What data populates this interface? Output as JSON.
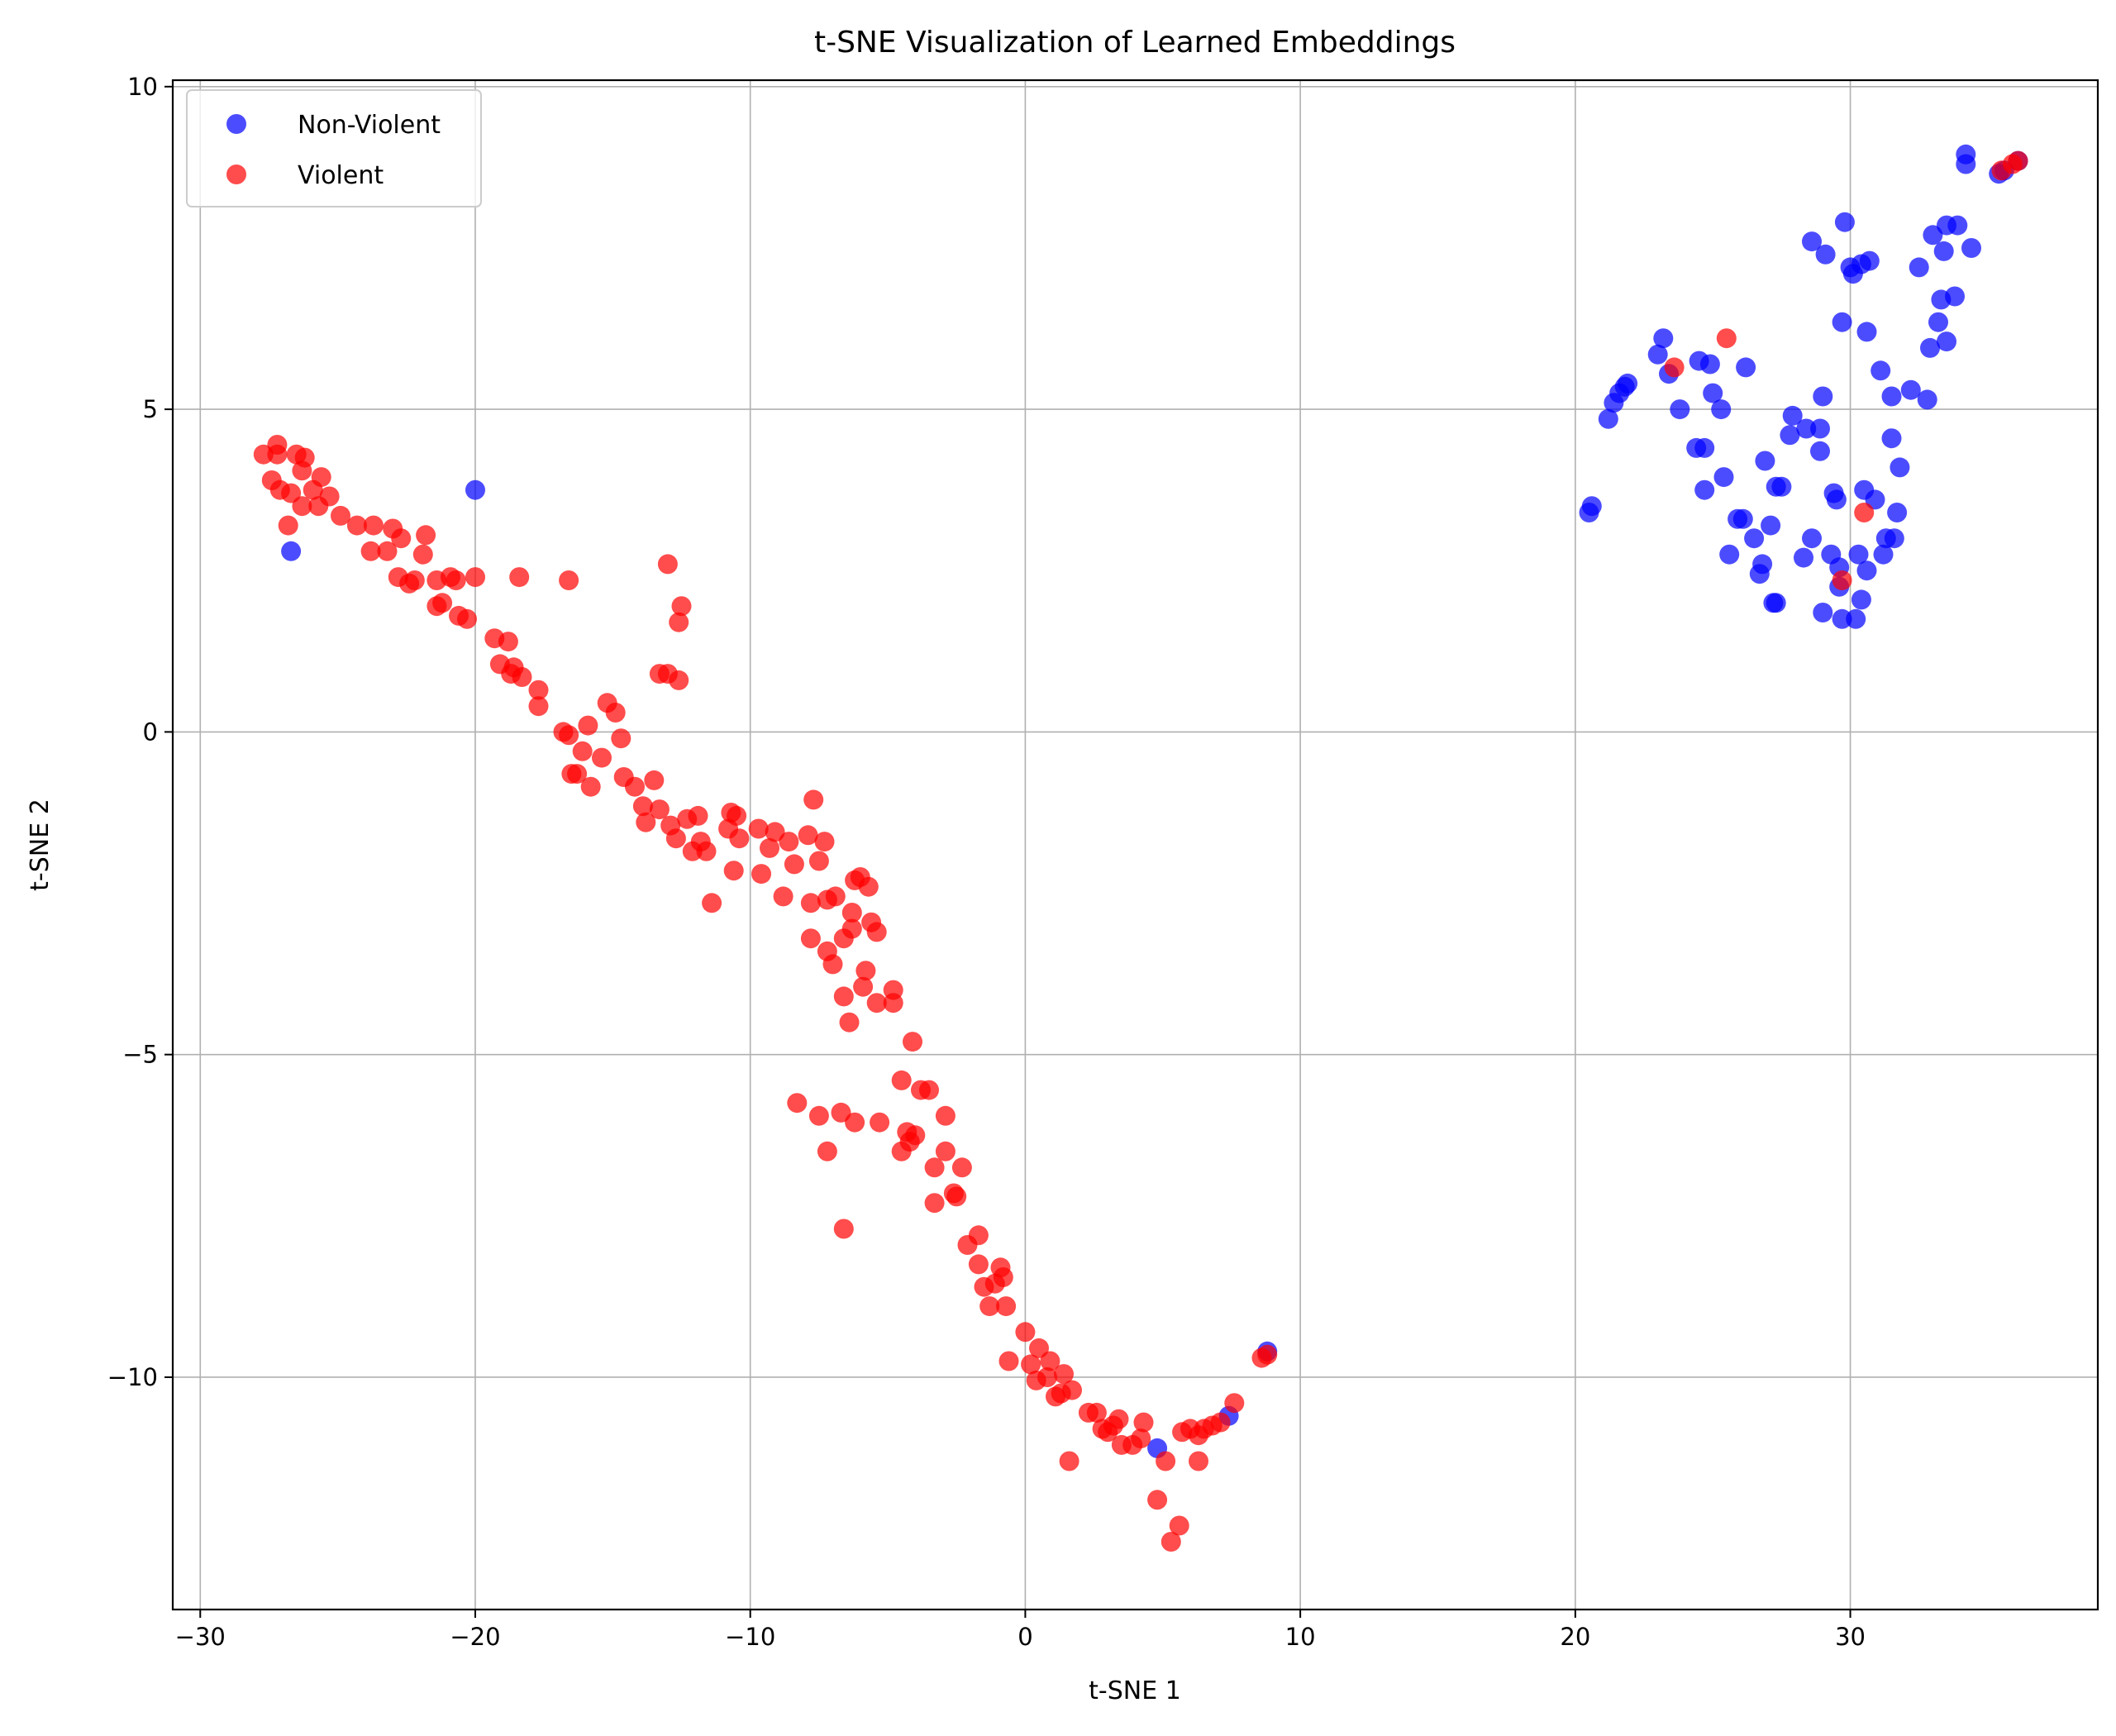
{
  "chart_data": {
    "type": "scatter",
    "title": "t-SNE Visualization of Learned Embeddings",
    "xlabel": "t-SNE 1",
    "ylabel": "t-SNE 2",
    "xlim": [
      -31,
      39
    ],
    "ylim": [
      -13.6,
      10.1
    ],
    "xticks": [
      -30,
      -20,
      -10,
      0,
      10,
      20,
      30
    ],
    "yticks": [
      -10,
      -5,
      0,
      5,
      10
    ],
    "xtick_labels": [
      "−30",
      "−20",
      "−10",
      "0",
      "10",
      "20",
      "30"
    ],
    "ytick_labels": [
      "−10",
      "−5",
      "0",
      "5",
      "10"
    ],
    "grid": true,
    "legend_position": "top-left",
    "series": [
      {
        "name": "Non-Violent",
        "color": "#0000ff",
        "points": [
          [
            -20,
            3.75
          ],
          [
            -26.7,
            2.8
          ],
          [
            4.8,
            -11.1
          ],
          [
            7.4,
            -10.6
          ],
          [
            8.8,
            -9.6
          ],
          [
            20.5,
            3.4
          ],
          [
            20.6,
            3.5
          ],
          [
            21.2,
            4.85
          ],
          [
            21.4,
            5.1
          ],
          [
            21.6,
            5.25
          ],
          [
            21.8,
            5.35
          ],
          [
            21.9,
            5.4
          ],
          [
            23.0,
            5.85
          ],
          [
            23.2,
            6.1
          ],
          [
            23.4,
            5.55
          ],
          [
            23.8,
            5.0
          ],
          [
            24.4,
            4.4
          ],
          [
            24.5,
            5.75
          ],
          [
            24.7,
            4.4
          ],
          [
            24.7,
            3.75
          ],
          [
            24.9,
            5.7
          ],
          [
            25.0,
            5.25
          ],
          [
            25.3,
            5.0
          ],
          [
            25.4,
            3.95
          ],
          [
            25.6,
            2.75
          ],
          [
            25.9,
            3.3
          ],
          [
            26.1,
            3.3
          ],
          [
            26.2,
            5.65
          ],
          [
            26.5,
            3.0
          ],
          [
            26.7,
            2.45
          ],
          [
            26.8,
            2.6
          ],
          [
            26.9,
            4.2
          ],
          [
            27.1,
            3.2
          ],
          [
            27.2,
            2.0
          ],
          [
            27.3,
            2.0
          ],
          [
            27.3,
            3.8
          ],
          [
            27.5,
            3.8
          ],
          [
            27.8,
            4.6
          ],
          [
            27.9,
            4.9
          ],
          [
            28.3,
            2.7
          ],
          [
            28.4,
            4.7
          ],
          [
            28.6,
            7.6
          ],
          [
            28.6,
            3.0
          ],
          [
            28.9,
            4.7
          ],
          [
            28.9,
            4.35
          ],
          [
            29.0,
            5.2
          ],
          [
            29.0,
            1.85
          ],
          [
            29.1,
            7.4
          ],
          [
            29.3,
            2.75
          ],
          [
            29.4,
            3.7
          ],
          [
            29.5,
            3.6
          ],
          [
            29.6,
            2.55
          ],
          [
            29.6,
            2.25
          ],
          [
            29.7,
            6.35
          ],
          [
            29.7,
            1.75
          ],
          [
            29.8,
            7.9
          ],
          [
            30.0,
            7.2
          ],
          [
            30.1,
            7.1
          ],
          [
            30.2,
            1.75
          ],
          [
            30.3,
            2.75
          ],
          [
            30.4,
            2.05
          ],
          [
            30.4,
            7.25
          ],
          [
            30.5,
            3.75
          ],
          [
            30.6,
            6.2
          ],
          [
            30.6,
            2.5
          ],
          [
            30.7,
            7.3
          ],
          [
            30.9,
            3.6
          ],
          [
            31.1,
            5.6
          ],
          [
            31.2,
            2.75
          ],
          [
            31.3,
            3.0
          ],
          [
            31.5,
            4.55
          ],
          [
            31.5,
            5.2
          ],
          [
            31.6,
            3.0
          ],
          [
            31.7,
            3.4
          ],
          [
            31.8,
            4.1
          ],
          [
            32.2,
            5.3
          ],
          [
            32.5,
            7.2
          ],
          [
            32.8,
            5.15
          ],
          [
            32.9,
            5.95
          ],
          [
            33.0,
            7.7
          ],
          [
            33.2,
            6.35
          ],
          [
            33.3,
            6.7
          ],
          [
            33.4,
            7.45
          ],
          [
            33.5,
            7.85
          ],
          [
            33.5,
            6.05
          ],
          [
            33.8,
            6.75
          ],
          [
            33.9,
            7.85
          ],
          [
            34.2,
            8.8
          ],
          [
            34.2,
            8.95
          ],
          [
            34.4,
            7.5
          ],
          [
            35.4,
            8.65
          ],
          [
            35.6,
            8.7
          ],
          [
            36.1,
            8.85
          ]
        ]
      },
      {
        "name": "Violent",
        "color": "#ff0000",
        "points": [
          [
            -27.7,
            4.3
          ],
          [
            -27.4,
            3.9
          ],
          [
            -27.2,
            4.45
          ],
          [
            -27.2,
            4.3
          ],
          [
            -27.1,
            3.75
          ],
          [
            -26.8,
            3.2
          ],
          [
            -26.7,
            3.7
          ],
          [
            -26.5,
            4.3
          ],
          [
            -26.3,
            3.5
          ],
          [
            -26.3,
            4.05
          ],
          [
            -26.2,
            4.25
          ],
          [
            -25.9,
            3.75
          ],
          [
            -25.7,
            3.5
          ],
          [
            -25.6,
            3.95
          ],
          [
            -25.3,
            3.65
          ],
          [
            -24.9,
            3.35
          ],
          [
            -24.3,
            3.2
          ],
          [
            -23.8,
            2.8
          ],
          [
            -23.7,
            3.2
          ],
          [
            -23.2,
            2.8
          ],
          [
            -23.0,
            3.15
          ],
          [
            -22.8,
            2.4
          ],
          [
            -22.7,
            3.0
          ],
          [
            -22.4,
            2.3
          ],
          [
            -22.2,
            2.35
          ],
          [
            -21.9,
            2.75
          ],
          [
            -21.8,
            3.05
          ],
          [
            -21.4,
            1.95
          ],
          [
            -21.4,
            2.35
          ],
          [
            -21.2,
            2.0
          ],
          [
            -20.9,
            2.4
          ],
          [
            -20.7,
            2.35
          ],
          [
            -20.6,
            1.8
          ],
          [
            -20.3,
            1.75
          ],
          [
            -20.0,
            2.4
          ],
          [
            -19.3,
            1.45
          ],
          [
            -19.1,
            1.05
          ],
          [
            -18.8,
            1.4
          ],
          [
            -18.7,
            0.9
          ],
          [
            -18.6,
            1.0
          ],
          [
            -18.4,
            2.4
          ],
          [
            -18.3,
            0.85
          ],
          [
            -17.7,
            0.65
          ],
          [
            -17.7,
            0.4
          ],
          [
            -16.6,
            2.35
          ],
          [
            -16.8,
            0.0
          ],
          [
            -16.6,
            -0.05
          ],
          [
            -16.5,
            -0.65
          ],
          [
            -16.3,
            -0.65
          ],
          [
            -16.1,
            -0.3
          ],
          [
            -15.9,
            0.1
          ],
          [
            -15.8,
            -0.85
          ],
          [
            -15.4,
            -0.4
          ],
          [
            -15.2,
            0.45
          ],
          [
            -14.9,
            0.3
          ],
          [
            -14.7,
            -0.1
          ],
          [
            -14.6,
            -0.7
          ],
          [
            -14.2,
            -0.85
          ],
          [
            -13.9,
            -1.15
          ],
          [
            -13.8,
            -1.4
          ],
          [
            -13.5,
            -0.75
          ],
          [
            -13.3,
            -1.2
          ],
          [
            -13.3,
            0.9
          ],
          [
            -13.0,
            0.9
          ],
          [
            -13.0,
            2.6
          ],
          [
            -12.9,
            -1.45
          ],
          [
            -12.7,
            -1.65
          ],
          [
            -12.6,
            0.8
          ],
          [
            -12.6,
            1.7
          ],
          [
            -12.5,
            1.95
          ],
          [
            -12.3,
            -1.35
          ],
          [
            -12.1,
            -1.85
          ],
          [
            -11.9,
            -1.3
          ],
          [
            -11.8,
            -1.7
          ],
          [
            -11.6,
            -1.85
          ],
          [
            -11.4,
            -2.65
          ],
          [
            -10.8,
            -1.5
          ],
          [
            -10.7,
            -1.25
          ],
          [
            -10.6,
            -2.15
          ],
          [
            -10.5,
            -1.3
          ],
          [
            -10.4,
            -1.65
          ],
          [
            -9.7,
            -1.5
          ],
          [
            -9.6,
            -2.2
          ],
          [
            -9.3,
            -1.8
          ],
          [
            -9.1,
            -1.55
          ],
          [
            -8.8,
            -2.55
          ],
          [
            -8.6,
            -1.7
          ],
          [
            -8.4,
            -2.05
          ],
          [
            -8.3,
            -5.75
          ],
          [
            -7.9,
            -1.6
          ],
          [
            -7.8,
            -2.65
          ],
          [
            -7.8,
            -3.2
          ],
          [
            -7.7,
            -1.05
          ],
          [
            -7.5,
            -2.0
          ],
          [
            -7.5,
            -5.95
          ],
          [
            -7.3,
            -1.7
          ],
          [
            -7.2,
            -2.6
          ],
          [
            -7.2,
            -3.4
          ],
          [
            -7.2,
            -6.5
          ],
          [
            -7.0,
            -3.6
          ],
          [
            -6.9,
            -2.55
          ],
          [
            -6.7,
            -5.9
          ],
          [
            -6.6,
            -3.2
          ],
          [
            -6.6,
            -4.1
          ],
          [
            -6.6,
            -7.7
          ],
          [
            -6.4,
            -4.5
          ],
          [
            -6.3,
            -3.05
          ],
          [
            -6.3,
            -2.8
          ],
          [
            -6.2,
            -6.05
          ],
          [
            -6.2,
            -2.3
          ],
          [
            -6.0,
            -2.25
          ],
          [
            -5.9,
            -3.95
          ],
          [
            -5.8,
            -3.7
          ],
          [
            -5.7,
            -2.4
          ],
          [
            -5.6,
            -2.95
          ],
          [
            -5.4,
            -3.1
          ],
          [
            -5.4,
            -4.2
          ],
          [
            -5.3,
            -6.05
          ],
          [
            -4.8,
            -4.0
          ],
          [
            -4.8,
            -4.2
          ],
          [
            -4.5,
            -5.4
          ],
          [
            -4.5,
            -6.5
          ],
          [
            -4.3,
            -6.2
          ],
          [
            -4.2,
            -6.35
          ],
          [
            -4.1,
            -4.8
          ],
          [
            -4.0,
            -6.25
          ],
          [
            -3.8,
            -5.55
          ],
          [
            -3.5,
            -5.55
          ],
          [
            -3.3,
            -6.75
          ],
          [
            -3.3,
            -7.3
          ],
          [
            -2.9,
            -5.95
          ],
          [
            -2.9,
            -6.5
          ],
          [
            -2.6,
            -7.15
          ],
          [
            -2.5,
            -7.2
          ],
          [
            -2.3,
            -6.75
          ],
          [
            -2.1,
            -7.95
          ],
          [
            -1.7,
            -7.8
          ],
          [
            -1.7,
            -8.25
          ],
          [
            -1.5,
            -8.6
          ],
          [
            -1.3,
            -8.9
          ],
          [
            -1.1,
            -8.55
          ],
          [
            -0.9,
            -8.3
          ],
          [
            -0.8,
            -8.45
          ],
          [
            -0.7,
            -8.9
          ],
          [
            -0.6,
            -9.75
          ],
          [
            0.0,
            -9.3
          ],
          [
            0.2,
            -9.8
          ],
          [
            0.4,
            -10.05
          ],
          [
            0.5,
            -9.55
          ],
          [
            0.8,
            -10.0
          ],
          [
            0.9,
            -9.75
          ],
          [
            1.1,
            -10.3
          ],
          [
            1.3,
            -10.25
          ],
          [
            1.4,
            -9.95
          ],
          [
            1.6,
            -11.3
          ],
          [
            1.7,
            -10.2
          ],
          [
            2.3,
            -10.55
          ],
          [
            2.6,
            -10.55
          ],
          [
            2.8,
            -10.8
          ],
          [
            3.0,
            -10.85
          ],
          [
            3.2,
            -10.75
          ],
          [
            3.4,
            -10.65
          ],
          [
            3.5,
            -11.05
          ],
          [
            3.9,
            -11.05
          ],
          [
            4.2,
            -10.95
          ],
          [
            4.3,
            -10.7
          ],
          [
            4.8,
            -11.9
          ],
          [
            5.1,
            -11.3
          ],
          [
            5.3,
            -12.55
          ],
          [
            5.6,
            -12.3
          ],
          [
            5.7,
            -10.85
          ],
          [
            6.0,
            -10.8
          ],
          [
            6.3,
            -10.9
          ],
          [
            6.3,
            -11.3
          ],
          [
            6.5,
            -10.8
          ],
          [
            6.8,
            -10.75
          ],
          [
            7.1,
            -10.7
          ],
          [
            7.6,
            -10.4
          ],
          [
            8.6,
            -9.7
          ],
          [
            8.8,
            -9.65
          ],
          [
            23.6,
            5.65
          ],
          [
            25.5,
            6.1
          ],
          [
            29.7,
            2.35
          ],
          [
            30.5,
            3.4
          ],
          [
            35.5,
            8.7
          ],
          [
            35.9,
            8.8
          ],
          [
            36.1,
            8.85
          ]
        ]
      }
    ]
  }
}
